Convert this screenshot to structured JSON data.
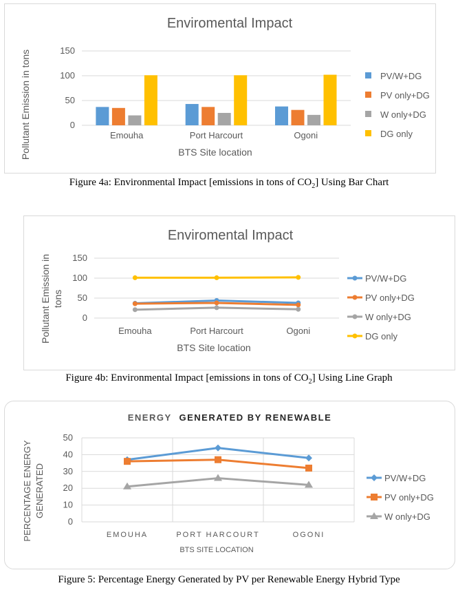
{
  "charts": [
    {
      "title": "Enviromental Impact",
      "ylabel": "Pollutant Emission in tons",
      "xlabel": "BTS Site  location",
      "caption_pre": "Figure 4a: Environmental Impact [emissions in tons of CO",
      "caption_sub": "2",
      "caption_post": "] Using Bar Chart"
    },
    {
      "title": "Enviromental Impact",
      "ylabel_line1": "Pollutant Emission in",
      "ylabel_line2": "tons",
      "xlabel": "BTS Site  location",
      "caption_pre": "Figure 4b:  Environmental Impact [emissions in tons of CO",
      "caption_sub": "2",
      "caption_post": "] Using Line Graph"
    },
    {
      "title_bold_dark": "ENERGY",
      "title_bold": "GENERATED BY RENEWABLE",
      "ylabel_line1": "PERCENTAGE ENERGY",
      "ylabel_line2": "GENERATED",
      "xlabel": "BTS SITE LOCATION",
      "caption": "Figure 5:  Percentage Energy Generated by PV per Renewable Energy Hybrid Type"
    }
  ],
  "chart_data": [
    {
      "type": "bar",
      "categories": [
        "Emouha",
        "Port Harcourt",
        "Ogoni"
      ],
      "series": [
        {
          "name": "PV/W+DG",
          "values": [
            37,
            43,
            38
          ],
          "color": "#5B9BD5"
        },
        {
          "name": "PV only+DG",
          "values": [
            35,
            37,
            31
          ],
          "color": "#ED7D31"
        },
        {
          "name": "W only+DG",
          "values": [
            20,
            25,
            21
          ],
          "color": "#A5A5A5"
        },
        {
          "name": "DG only",
          "values": [
            101,
            101,
            102
          ],
          "color": "#FFC000"
        }
      ],
      "yticks": [
        "0",
        "50",
        "100",
        "150"
      ],
      "ylim": [
        0,
        150
      ],
      "grid": true,
      "legend": "right"
    },
    {
      "type": "line",
      "categories": [
        "Emouha",
        "Port Harcourt",
        "Ogoni"
      ],
      "series": [
        {
          "name": "PV/W+DG",
          "values": [
            37,
            44,
            38
          ],
          "color": "#5B9BD5"
        },
        {
          "name": "PV only+DG",
          "values": [
            36,
            38,
            33
          ],
          "color": "#ED7D31"
        },
        {
          "name": "W only+DG",
          "values": [
            21,
            26,
            22
          ],
          "color": "#A5A5A5"
        },
        {
          "name": "DG only",
          "values": [
            101,
            101,
            102
          ],
          "color": "#FFC000"
        }
      ],
      "yticks": [
        "0",
        "50",
        "100",
        "150"
      ],
      "ylim": [
        0,
        150
      ],
      "grid": true,
      "legend": "right"
    },
    {
      "type": "line",
      "categories": [
        "EMOUHA",
        "PORT HARCOURT",
        "OGONI"
      ],
      "series": [
        {
          "name": "PV/W+DG",
          "values": [
            37,
            44,
            38
          ],
          "color": "#5B9BD5",
          "marker": "diamond"
        },
        {
          "name": "PV only+DG",
          "values": [
            36,
            37,
            32
          ],
          "color": "#ED7D31",
          "marker": "square"
        },
        {
          "name": "W only+DG",
          "values": [
            21,
            26,
            22
          ],
          "color": "#A5A5A5",
          "marker": "triangle"
        }
      ],
      "yticks": [
        "0",
        "10",
        "20",
        "30",
        "40",
        "50"
      ],
      "ylim": [
        0,
        50
      ],
      "grid": true,
      "legend": "right"
    }
  ]
}
